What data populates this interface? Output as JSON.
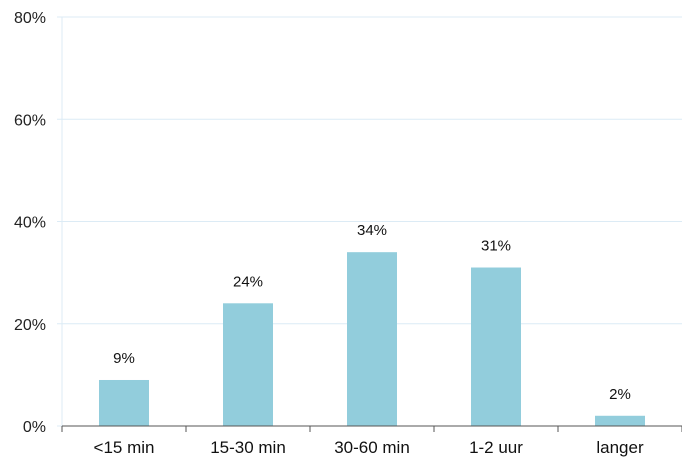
{
  "chart_data": {
    "type": "bar",
    "categories": [
      "<15 min",
      "15-30 min",
      "30-60 min",
      "1-2 uur",
      "langer"
    ],
    "values": [
      9,
      24,
      34,
      31,
      2
    ],
    "data_labels": [
      "9%",
      "24%",
      "34%",
      "31%",
      "2%"
    ],
    "title": "",
    "xlabel": "",
    "ylabel": "",
    "ylim": [
      0,
      80
    ],
    "yticks": [
      0,
      20,
      40,
      60,
      80
    ],
    "ytick_labels": [
      "0%",
      "20%",
      "40%",
      "60%",
      "80%"
    ],
    "grid": true,
    "legend": "none",
    "colors": {
      "bar": "#92CDDC",
      "grid": "#DCEBF5",
      "axis": "#555555",
      "text": "#111111"
    }
  }
}
